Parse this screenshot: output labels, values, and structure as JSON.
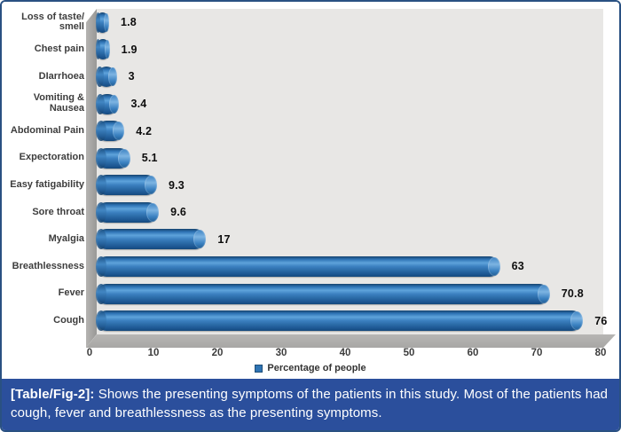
{
  "chart_data": {
    "type": "bar",
    "orientation": "horizontal",
    "title": "",
    "xlabel": "",
    "ylabel": "",
    "categories": [
      "Loss of taste/ smell",
      "Chest pain",
      "DIarrhoea",
      "Vomiting & Nausea",
      "Abdominal Pain",
      "Expectoration",
      "Easy fatigability",
      "Sore throat",
      "Myalgia",
      "Breathlessness",
      "Fever",
      "Cough"
    ],
    "values": [
      1.8,
      1.9,
      3,
      3.4,
      4.2,
      5.1,
      9.3,
      9.6,
      17,
      63,
      70.8,
      76
    ],
    "value_labels": [
      "1.8",
      "1.9",
      "3",
      "3.4",
      "4.2",
      "5.1",
      "9.3",
      "9.6",
      "17",
      "63",
      "70.8",
      "76"
    ],
    "x_ticks": [
      0,
      10,
      20,
      30,
      40,
      50,
      60,
      70,
      80
    ],
    "xlim": [
      0,
      80
    ],
    "grid": false,
    "legend_position": "bottom",
    "series_name": "Percentage of people",
    "bar_color": "#2e74b4",
    "style": "3d-cylinder"
  },
  "legend": {
    "label": "Percentage of people",
    "swatch_color": "#2e74b4"
  },
  "caption": {
    "tag": "[Table/Fig-2]:",
    "text": " Shows the presenting symptoms of the patients in this study. Most of the patients had cough, fever and breathlessness as the presenting symptoms."
  },
  "colors": {
    "caption_background": "#2b4f9c",
    "frame_border": "#2a5182",
    "plot_background": "#e8e7e5",
    "wall_gray": "#a3a2a0",
    "floor_gray": "#aeadab"
  }
}
